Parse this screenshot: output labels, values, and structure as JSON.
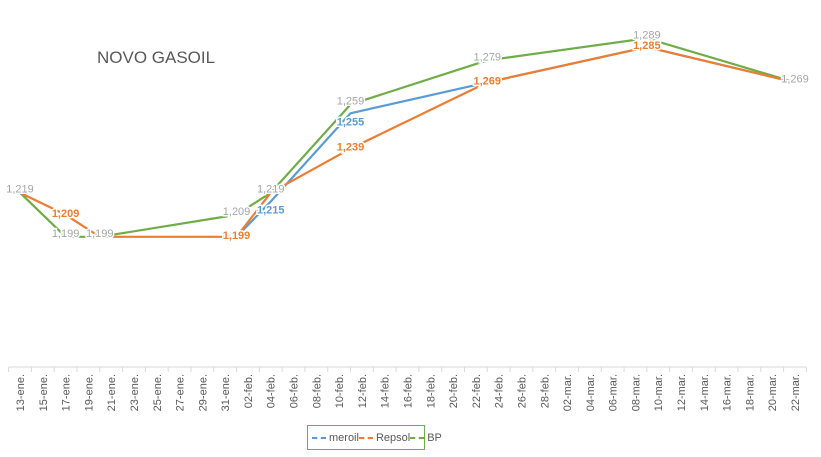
{
  "chart_data": {
    "type": "line",
    "title": "NOVO GASOIL",
    "xlabel": "",
    "ylabel": "",
    "ylim": [
      1140,
      1300
    ],
    "x_tick_labels": [
      "13-ene.",
      "15-ene.",
      "17-ene.",
      "19-ene.",
      "21-ene.",
      "23-ene.",
      "25-ene.",
      "27-ene.",
      "29-ene.",
      "31-ene.",
      "02-feb.",
      "04-feb.",
      "06-feb.",
      "08-feb.",
      "10-feb.",
      "12-feb.",
      "14-feb.",
      "16-feb.",
      "18-feb.",
      "20-feb.",
      "22-feb.",
      "24-feb.",
      "26-feb.",
      "28-feb.",
      "02-mar.",
      "04-mar.",
      "06-mar.",
      "08-mar.",
      "10-mar.",
      "12-mar.",
      "14-mar.",
      "16-mar.",
      "18-mar.",
      "20-mar.",
      "22-mar."
    ],
    "x_day_span": [
      0,
      68
    ],
    "legend_position": "bottom",
    "series": [
      {
        "name": "meroil",
        "color": "#5b9bd5",
        "days": [
          19,
          22,
          29,
          41,
          55,
          68
        ],
        "values": [
          1199,
          1215,
          1255,
          1269,
          1285,
          1269
        ],
        "labels": [
          false,
          true,
          true,
          false,
          false,
          false
        ],
        "label_color": "#5b9bd5"
      },
      {
        "name": "Repsol",
        "color": "#ed7d31",
        "days": [
          0,
          4,
          7,
          19,
          22,
          29,
          41,
          55,
          68
        ],
        "values": [
          1219,
          1209,
          1199,
          1199,
          1219,
          1239,
          1269,
          1285,
          1269
        ],
        "labels": [
          false,
          true,
          false,
          true,
          false,
          true,
          true,
          true,
          false
        ],
        "label_color": "#ed7d31"
      },
      {
        "name": "BP",
        "color": "#70ad47",
        "days": [
          0,
          4,
          7,
          19,
          22,
          29,
          41,
          55,
          68
        ],
        "values": [
          1219,
          1199,
          1199,
          1209,
          1219,
          1259,
          1279,
          1289,
          1269
        ],
        "labels": [
          true,
          true,
          true,
          true,
          true,
          true,
          true,
          true,
          true
        ],
        "label_color": "#a5a5a5"
      }
    ]
  }
}
